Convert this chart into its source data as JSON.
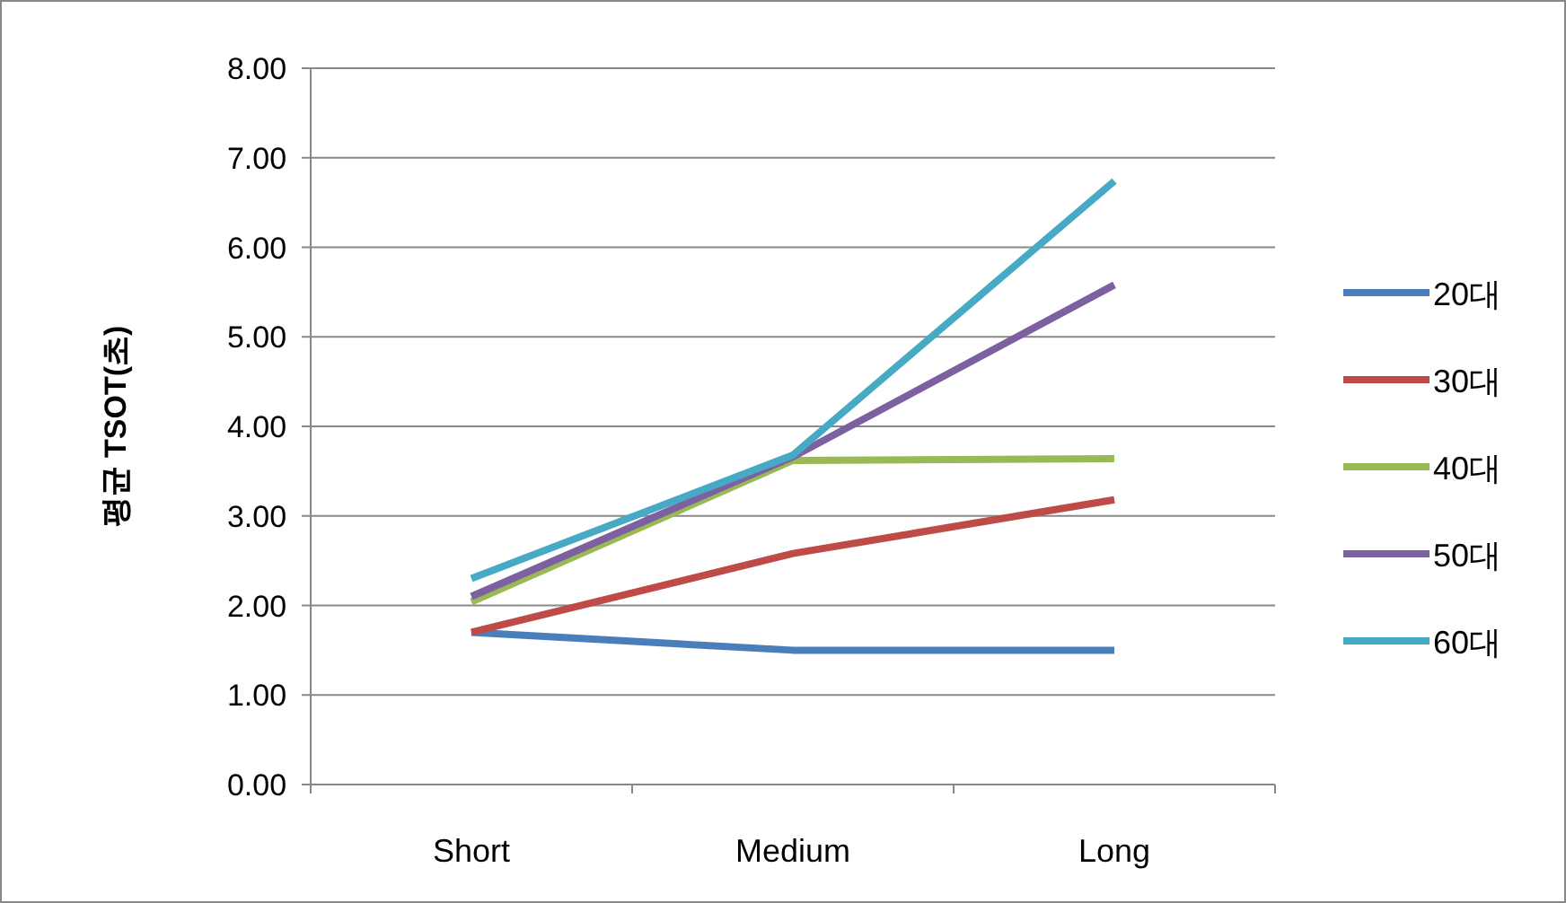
{
  "chart_data": {
    "type": "line",
    "ylabel": "평균 TSOT(초)",
    "categories": [
      "Short",
      "Medium",
      "Long"
    ],
    "ylim": [
      0,
      8
    ],
    "yticks": [
      {
        "value": 0,
        "label": "0.00"
      },
      {
        "value": 1,
        "label": "1.00"
      },
      {
        "value": 2,
        "label": "2.00"
      },
      {
        "value": 3,
        "label": "3.00"
      },
      {
        "value": 4,
        "label": "4.00"
      },
      {
        "value": 5,
        "label": "5.00"
      },
      {
        "value": 6,
        "label": "6.00"
      },
      {
        "value": 7,
        "label": "7.00"
      },
      {
        "value": 8,
        "label": "8.00"
      }
    ],
    "grid": "y",
    "legend": "right",
    "marker": "none",
    "series": [
      {
        "name": "20대",
        "color": "#4a7ebb",
        "values": [
          1.7,
          1.5,
          1.5
        ]
      },
      {
        "name": "30대",
        "color": "#be4b48",
        "values": [
          1.7,
          2.58,
          3.18
        ]
      },
      {
        "name": "40대",
        "color": "#98b954",
        "values": [
          2.04,
          3.62,
          3.64
        ]
      },
      {
        "name": "50대",
        "color": "#7d60a0",
        "values": [
          2.1,
          3.66,
          5.58
        ]
      },
      {
        "name": "60대",
        "color": "#46aac5",
        "values": [
          2.3,
          3.68,
          6.74
        ]
      }
    ]
  }
}
